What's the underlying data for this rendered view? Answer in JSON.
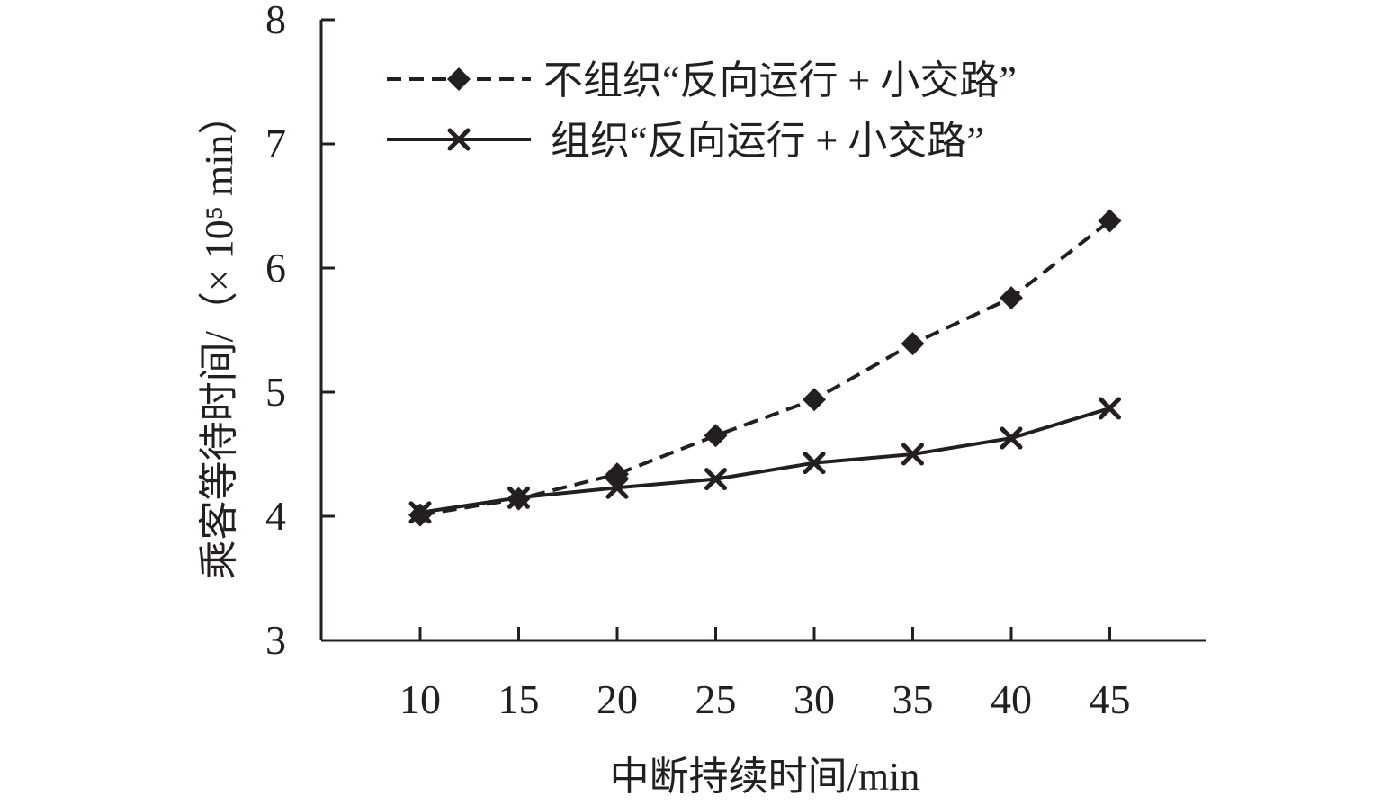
{
  "chart_data": {
    "type": "line",
    "xlabel": "中断持续时间/min",
    "ylabel": "乘客等待时间/（× 10⁵ min）",
    "x": [
      10,
      15,
      20,
      25,
      30,
      35,
      40,
      45
    ],
    "x_tick_labels": [
      "10",
      "15",
      "20",
      "25",
      "30",
      "35",
      "40",
      "45"
    ],
    "y_tick_labels": [
      "3",
      "4",
      "5",
      "6",
      "7",
      "8"
    ],
    "ylim": [
      3,
      8
    ],
    "grid": false,
    "legend_position": "top",
    "series": [
      {
        "name": "不组织“反向运行 + 小交路”",
        "values": [
          4.01,
          4.14,
          4.34,
          4.65,
          4.94,
          5.39,
          5.76,
          6.38
        ],
        "line_style": "dashed",
        "marker": "diamond",
        "color": "#231f20"
      },
      {
        "name": "组织“反向运行 + 小交路”",
        "values": [
          4.03,
          4.15,
          4.23,
          4.3,
          4.43,
          4.5,
          4.63,
          4.87
        ],
        "line_style": "solid",
        "marker": "x",
        "color": "#231f20"
      }
    ]
  }
}
